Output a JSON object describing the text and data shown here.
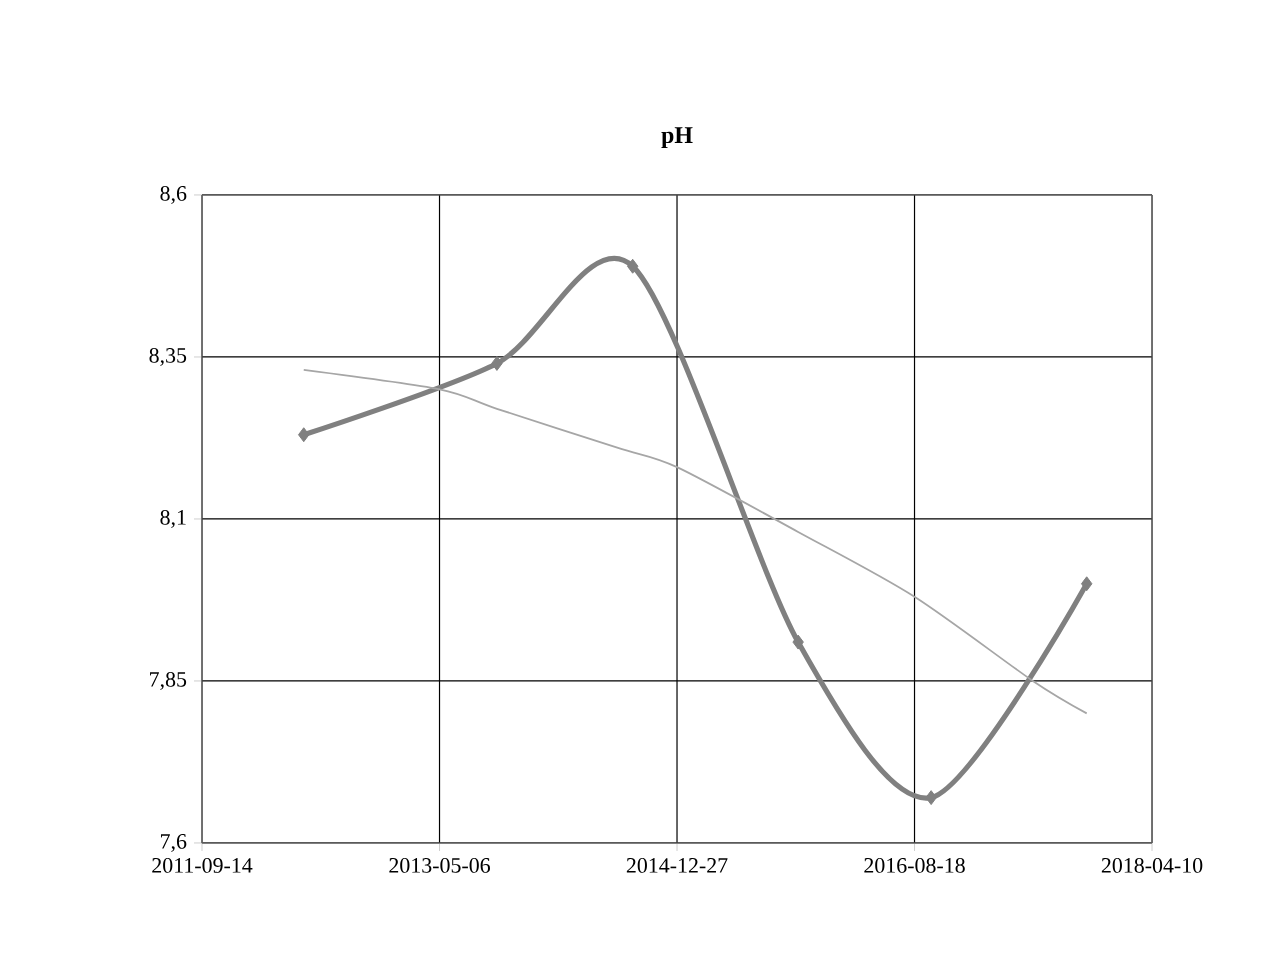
{
  "chart_data": {
    "type": "line",
    "title": "pH",
    "xlim": [
      "2011-09-14",
      "2018-04-10"
    ],
    "xticks": [
      "2011-09-14",
      "2013-05-06",
      "2014-12-27",
      "2016-08-18",
      "2018-04-10"
    ],
    "ylim": [
      7.6,
      8.6
    ],
    "yticks": [
      {
        "value": 7.6,
        "label": "7,6"
      },
      {
        "value": 7.85,
        "label": "7,85"
      },
      {
        "value": 8.1,
        "label": "8,1"
      },
      {
        "value": 8.35,
        "label": "8,35"
      },
      {
        "value": 8.6,
        "label": "8,6"
      }
    ],
    "grid": true,
    "series": [
      {
        "color": "#808080",
        "marker": "diamond",
        "line_style": "solid",
        "x": [
          "2012-05-28",
          "2013-09-28",
          "2014-09-06",
          "2015-10-29",
          "2016-09-29",
          "2017-10-27"
        ],
        "values": [
          8.23,
          8.34,
          8.49,
          7.91,
          7.67,
          8.0
        ]
      },
      {
        "color": "#a6a6a6",
        "marker": "none",
        "line_style": "solid",
        "x": [
          "2012-05-28",
          "2013-05-06",
          "2013-09-28",
          "2014-07-29",
          "2014-12-27",
          "2015-10-29",
          "2016-08-18",
          "2017-06-13",
          "2017-10-27"
        ],
        "values": [
          8.33,
          8.3,
          8.27,
          8.21,
          8.18,
          8.08,
          7.98,
          7.85,
          7.8
        ]
      }
    ]
  }
}
